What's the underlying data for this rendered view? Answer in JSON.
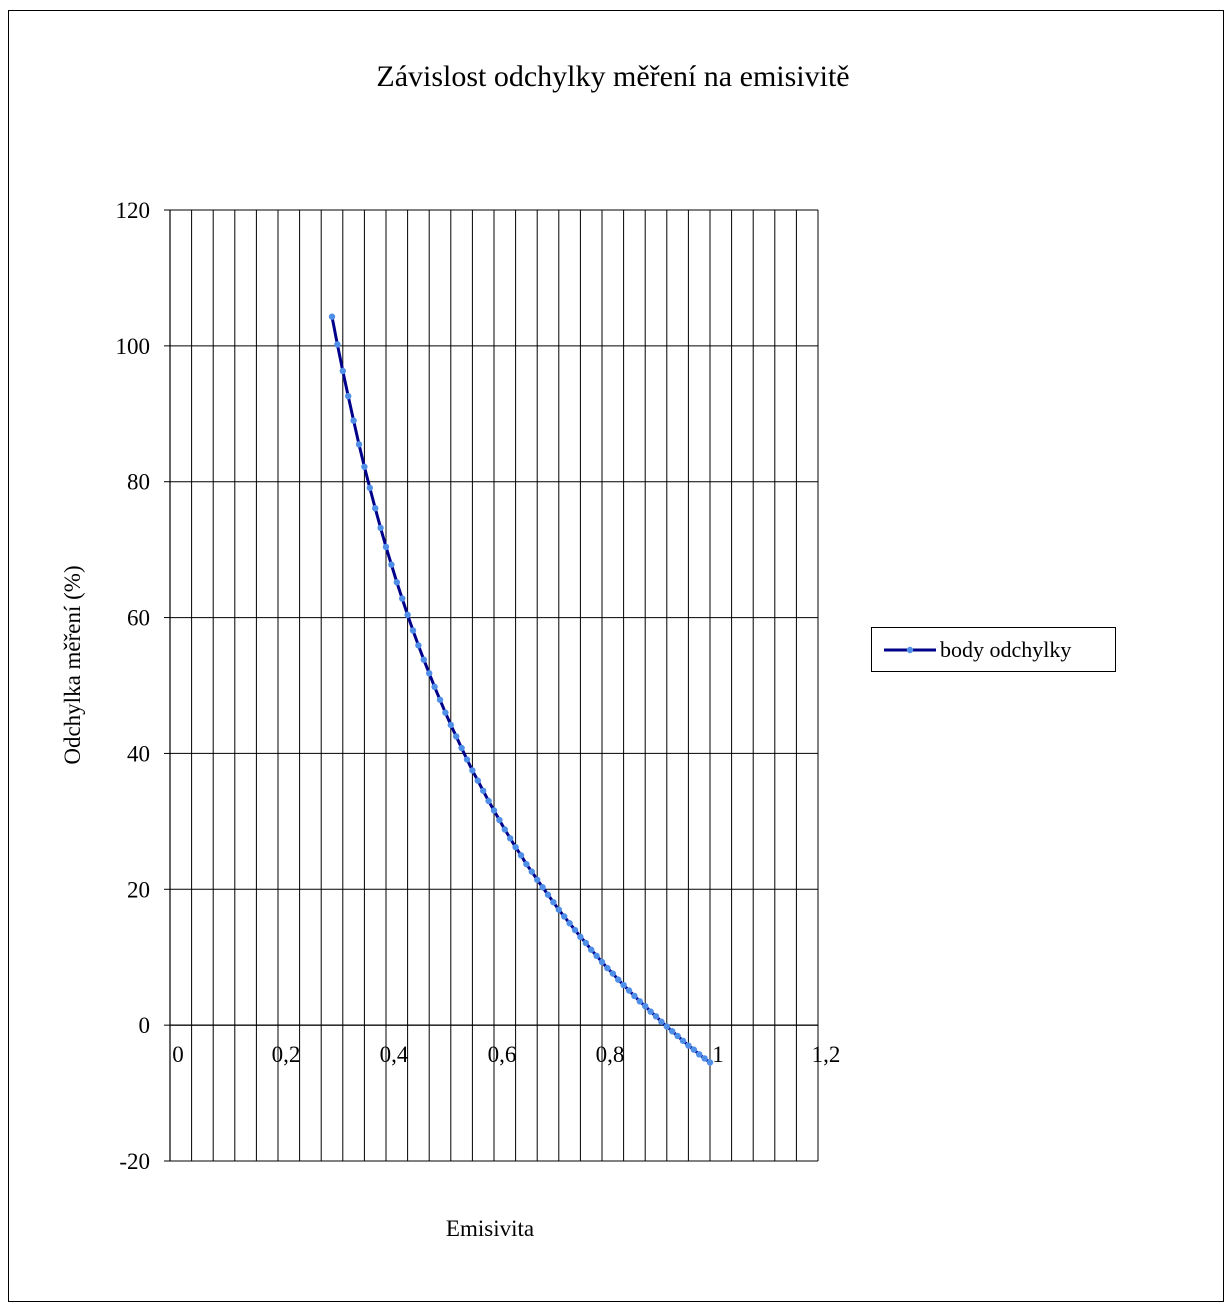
{
  "chart_data": {
    "type": "line",
    "title": "Závislost odchylky měření na emisivitě",
    "xlabel": "Emisivita",
    "ylabel": "Odchylka měření (%)",
    "xlim": [
      0,
      1.2
    ],
    "ylim": [
      -20,
      120
    ],
    "x_ticks": [
      "0",
      "0,2",
      "0,4",
      "0,6",
      "0,8",
      "1",
      "1,2"
    ],
    "y_ticks": [
      "120",
      "100",
      "80",
      "60",
      "40",
      "20",
      "0",
      "-20"
    ],
    "grid": true,
    "legend_position": "right",
    "series": [
      {
        "name": "body odchylky",
        "color": "#00008b",
        "marker_color": "#4f8fe8",
        "x": [
          0.3,
          0.31,
          0.32,
          0.33,
          0.34,
          0.35,
          0.36,
          0.37,
          0.38,
          0.39,
          0.4,
          0.41,
          0.42,
          0.43,
          0.44,
          0.45,
          0.46,
          0.47,
          0.48,
          0.49,
          0.5,
          0.51,
          0.52,
          0.53,
          0.54,
          0.55,
          0.56,
          0.57,
          0.58,
          0.59,
          0.6,
          0.61,
          0.62,
          0.63,
          0.64,
          0.65,
          0.66,
          0.67,
          0.68,
          0.69,
          0.7,
          0.71,
          0.72,
          0.73,
          0.74,
          0.75,
          0.76,
          0.77,
          0.78,
          0.79,
          0.8,
          0.81,
          0.82,
          0.83,
          0.84,
          0.85,
          0.86,
          0.87,
          0.88,
          0.89,
          0.9,
          0.91,
          0.92,
          0.93,
          0.94,
          0.95,
          0.96,
          0.97,
          0.98,
          0.99,
          1.0
        ],
        "y": [
          104.3,
          100.2,
          96.3,
          92.6,
          89.0,
          85.5,
          82.2,
          79.1,
          76.1,
          73.2,
          70.4,
          67.8,
          65.2,
          62.8,
          60.4,
          58.1,
          55.9,
          53.8,
          51.8,
          49.8,
          47.9,
          46.0,
          44.2,
          42.5,
          40.8,
          39.1,
          37.5,
          36.0,
          34.5,
          33.0,
          31.6,
          30.2,
          28.8,
          27.5,
          26.2,
          25.0,
          23.7,
          22.6,
          21.4,
          20.3,
          19.2,
          18.1,
          17.0,
          16.0,
          15.0,
          14.0,
          13.0,
          12.1,
          11.1,
          10.2,
          9.3,
          8.4,
          7.6,
          6.7,
          5.9,
          5.1,
          4.3,
          3.5,
          2.8,
          2.0,
          1.3,
          0.5,
          -0.2,
          -0.9,
          -1.6,
          -2.3,
          -3.0,
          -3.6,
          -4.3,
          -4.9,
          -5.5
        ]
      }
    ]
  }
}
